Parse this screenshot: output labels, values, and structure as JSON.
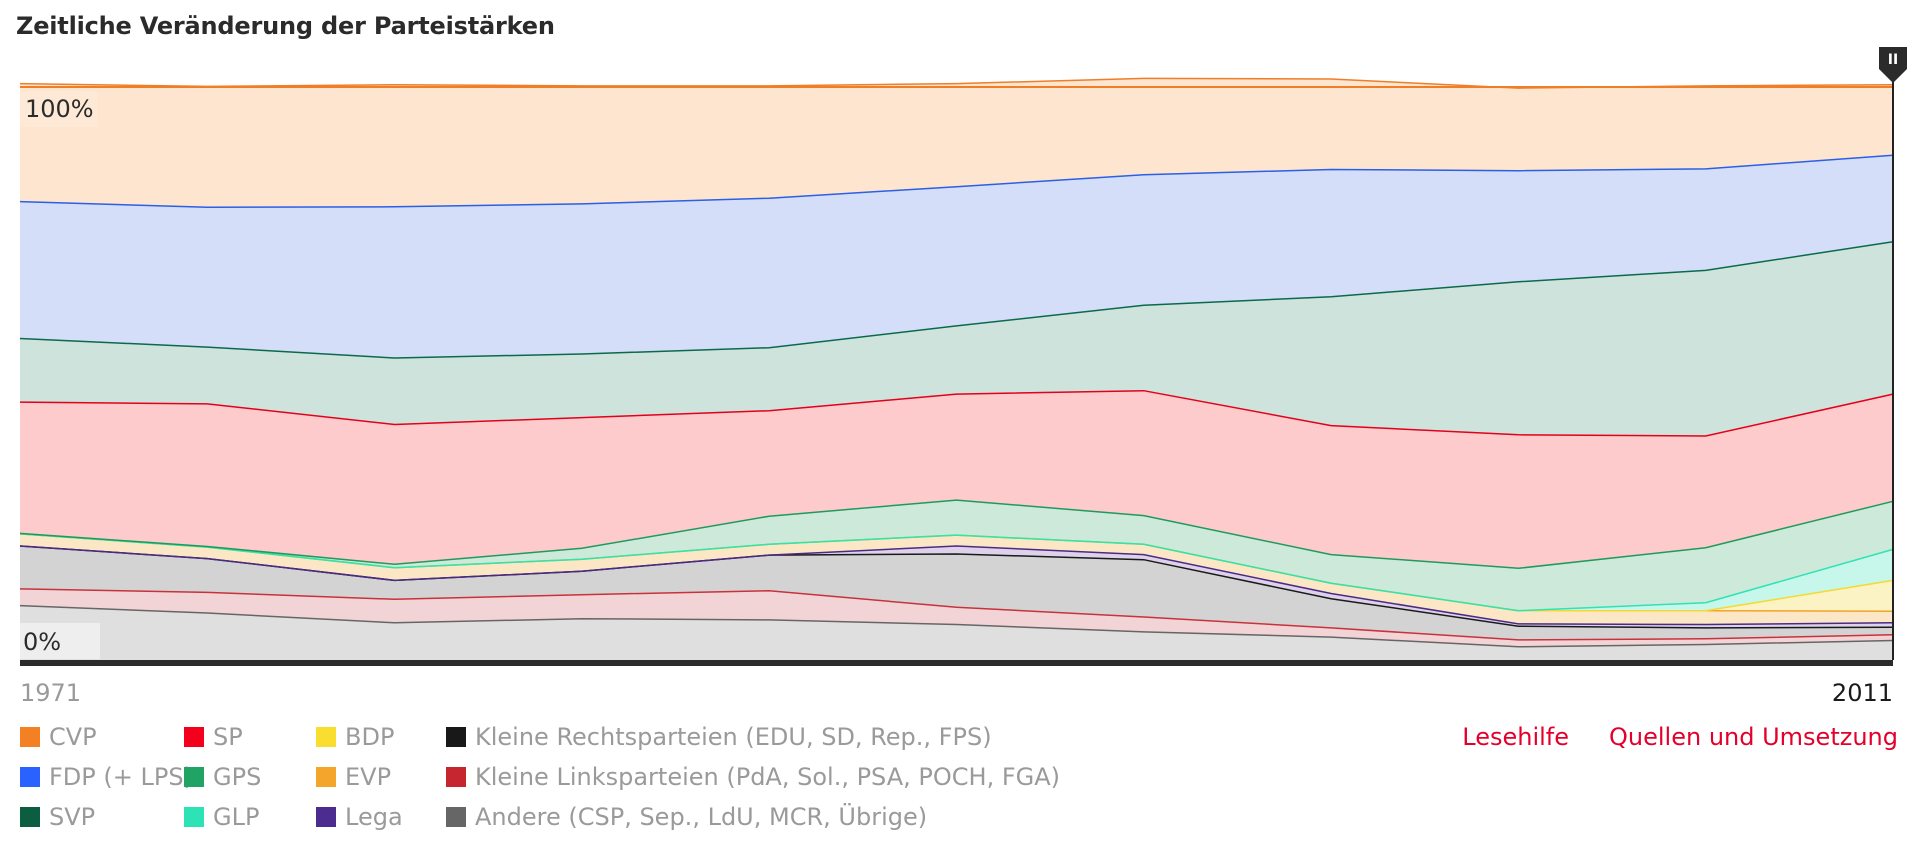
{
  "title": "Zeitliche Veränderung der Parteistärken",
  "links": {
    "help": "Lesehilfe",
    "sources": "Quellen und Umsetzung"
  },
  "handle_glyph": "II",
  "chart_data": {
    "type": "area",
    "stacked": true,
    "normalized": true,
    "x_start_label": "1971",
    "x_end_label": "2011",
    "x": [
      1971,
      1975,
      1979,
      1983,
      1987,
      1991,
      1995,
      1999,
      2003,
      2007,
      2011
    ],
    "y_labels": {
      "top": "100%",
      "bottom": "0%"
    },
    "ylim": [
      0,
      100
    ],
    "series": [
      {
        "name": "Andere (CSP, Sep., LdU, MCR, Übrige)",
        "color": "#666666",
        "fill": "#dfdfdf",
        "values": [
          9.5,
          8.2,
          6.5,
          7.2,
          7.0,
          6.2,
          4.9,
          4.0,
          2.3,
          2.7,
          3.4
        ]
      },
      {
        "name": "Kleine Linksparteien (PdA, Sol., PSA, POCH, FGA)",
        "color": "#c8323c",
        "fill": "#f3d4d6",
        "values": [
          2.9,
          3.6,
          4.1,
          4.2,
          5.1,
          3.0,
          2.6,
          1.6,
          1.2,
          1.0,
          1.0
        ]
      },
      {
        "name": "Kleine Rechtsparteien (EDU, SD, Rep., FPS)",
        "color": "#1a1a1a",
        "fill": "#d3d3d3",
        "values": [
          7.5,
          5.9,
          3.3,
          4.1,
          6.2,
          9.3,
          10.0,
          5.1,
          2.4,
          1.9,
          1.3
        ]
      },
      {
        "name": "Lega",
        "color": "#4a2a85",
        "fill": "#ddd2ea",
        "values": [
          0,
          0,
          0,
          0,
          0,
          1.4,
          0.9,
          0.9,
          0.4,
          0.6,
          0.8
        ]
      },
      {
        "name": "EVP",
        "color": "#f2a32c",
        "fill": "#fbe7c6",
        "values": [
          2.1,
          2.0,
          2.2,
          2.1,
          1.9,
          1.9,
          1.8,
          1.8,
          2.3,
          2.4,
          2.0
        ]
      },
      {
        "name": "BDP",
        "color": "#f5d931",
        "fill": "#fcf3c4",
        "values": [
          0,
          0,
          0,
          0,
          0,
          0,
          0,
          0,
          0,
          0,
          5.4
        ]
      },
      {
        "name": "GLP",
        "color": "#2ee3b4",
        "fill": "#c6f7ea",
        "values": [
          0,
          0,
          0,
          0,
          0,
          0,
          0,
          0,
          0,
          1.4,
          5.4
        ]
      },
      {
        "name": "GPS",
        "color": "#1f9a5d",
        "fill": "#cde9d9",
        "values": [
          0.1,
          0.1,
          0.6,
          1.9,
          4.9,
          6.1,
          5.0,
          5.0,
          7.4,
          9.6,
          8.4
        ]
      },
      {
        "name": "SP",
        "color": "#e3001b",
        "fill": "#fdcbcc",
        "values": [
          22.9,
          24.9,
          24.4,
          22.8,
          18.4,
          18.5,
          21.8,
          22.5,
          23.3,
          19.5,
          18.7
        ]
      },
      {
        "name": "SVP",
        "color": "#0a6a4b",
        "fill": "#cde3db",
        "values": [
          11.1,
          9.9,
          11.6,
          11.1,
          11.0,
          11.9,
          14.9,
          22.5,
          26.7,
          28.9,
          26.6
        ]
      },
      {
        "name": "FDP (+ LPS)",
        "color": "#2a5fe6",
        "fill": "#d4def9",
        "values": [
          23.9,
          24.4,
          26.4,
          26.2,
          26.1,
          24.3,
          22.8,
          22.2,
          19.4,
          17.7,
          15.1
        ]
      },
      {
        "name": "CVP",
        "color": "#f07e26",
        "fill": "#fde5cf",
        "values": [
          20.6,
          21.1,
          21.3,
          20.6,
          19.6,
          18.0,
          16.8,
          15.8,
          14.4,
          14.5,
          12.3
        ]
      }
    ],
    "legend_order": [
      [
        "CVP",
        "FDP (+ LPS)",
        "SVP"
      ],
      [
        "SP",
        "GPS",
        "GLP"
      ],
      [
        "BDP",
        "EVP",
        "Lega"
      ],
      [
        "Kleine Rechtsparteien (EDU, SD, Rep., FPS)",
        "Kleine Linksparteien (PdA, Sol., PSA, POCH, FGA)",
        "Andere (CSP, Sep., LdU, MCR, Übrige)"
      ]
    ],
    "legend_swatch_colors": {
      "CVP": "#f48024",
      "FDP (+ LPS)": "#2962ff",
      "SVP": "#0b5e3f",
      "SP": "#f2001c",
      "GPS": "#20a363",
      "GLP": "#2de3b5",
      "BDP": "#fade2f",
      "EVP": "#f4a52b",
      "Lega": "#4d2c8f",
      "Kleine Rechtsparteien (EDU, SD, Rep., FPS)": "#181818",
      "Kleine Linksparteien (PdA, Sol., PSA, POCH, FGA)": "#c6262f",
      "Andere (CSP, Sep., LdU, MCR, Übrige)": "#666666"
    },
    "legend_placement": "bottom",
    "grid": false
  }
}
